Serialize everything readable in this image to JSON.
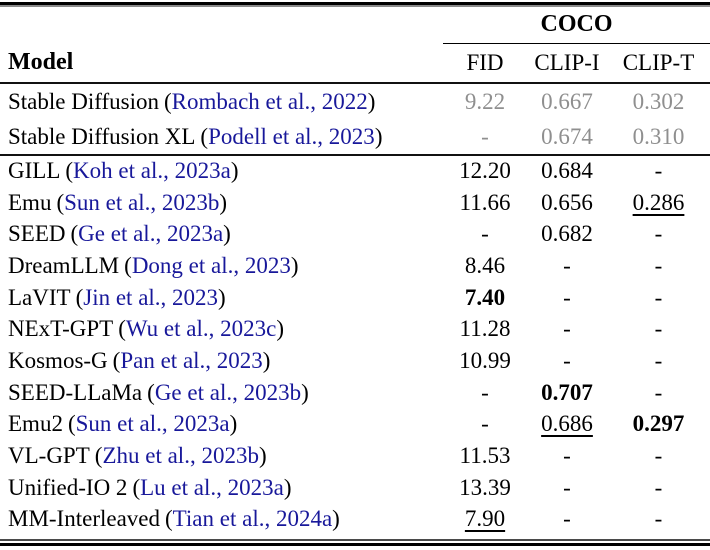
{
  "page": {
    "group_header": "COCO",
    "paren_open": "(",
    "paren_close": ")"
  },
  "columns": {
    "model": "Model",
    "fid": "FID",
    "clip_i": "CLIP-I",
    "clip_t": "CLIP-T"
  },
  "colors": {
    "citation_blue": "#18189a",
    "muted_gray": "#8f8f8f",
    "rule_black": "#000000"
  },
  "reference_rows": [
    {
      "model": "Stable Diffusion",
      "cite": "Rombach et al., 2022",
      "fid": "9.22",
      "clip_i": "0.667",
      "clip_t": "0.302"
    },
    {
      "model": "Stable Diffusion XL",
      "cite": "Podell et al., 2023",
      "fid": "-",
      "clip_i": "0.674",
      "clip_t": "0.310"
    }
  ],
  "rows": [
    {
      "model": "GILL",
      "cite": "Koh et al., 2023a",
      "fid": "12.20",
      "clip_i": "0.684",
      "clip_t": "-"
    },
    {
      "model": "Emu",
      "cite": "Sun et al., 2023b",
      "fid": "11.66",
      "clip_i": "0.656",
      "clip_t": "0.286",
      "clip_t_class": "underline"
    },
    {
      "model": "SEED",
      "cite": "Ge et al., 2023a",
      "fid": "-",
      "clip_i": "0.682",
      "clip_t": "-"
    },
    {
      "model": "DreamLLM",
      "cite": "Dong et al., 2023",
      "fid": "8.46",
      "clip_i": "-",
      "clip_t": "-"
    },
    {
      "model": "LaVIT",
      "cite": "Jin et al., 2023",
      "fid": "7.40",
      "fid_class": "bold",
      "clip_i": "-",
      "clip_t": "-"
    },
    {
      "model": "NExT-GPT",
      "cite": "Wu et al., 2023c",
      "fid": "11.28",
      "clip_i": "-",
      "clip_t": "-"
    },
    {
      "model": "Kosmos-G",
      "cite": "Pan et al., 2023",
      "fid": "10.99",
      "clip_i": "-",
      "clip_t": "-"
    },
    {
      "model": "SEED-LLaMa",
      "cite": "Ge et al., 2023b",
      "fid": "-",
      "clip_i": "0.707",
      "clip_i_class": "bold",
      "clip_t": "-"
    },
    {
      "model": "Emu2",
      "cite": "Sun et al., 2023a",
      "fid": "-",
      "clip_i": "0.686",
      "clip_i_class": "underline",
      "clip_t": "0.297",
      "clip_t_class": "bold"
    },
    {
      "model": "VL-GPT",
      "cite": "Zhu et al., 2023b",
      "fid": "11.53",
      "clip_i": "-",
      "clip_t": "-"
    },
    {
      "model": "Unified-IO 2",
      "cite": "Lu et al., 2023a",
      "fid": "13.39",
      "clip_i": "-",
      "clip_t": "-"
    },
    {
      "model": "MM-Interleaved",
      "cite": "Tian et al., 2024a",
      "fid": "7.90",
      "fid_class": "underline",
      "clip_i": "-",
      "clip_t": "-"
    }
  ]
}
